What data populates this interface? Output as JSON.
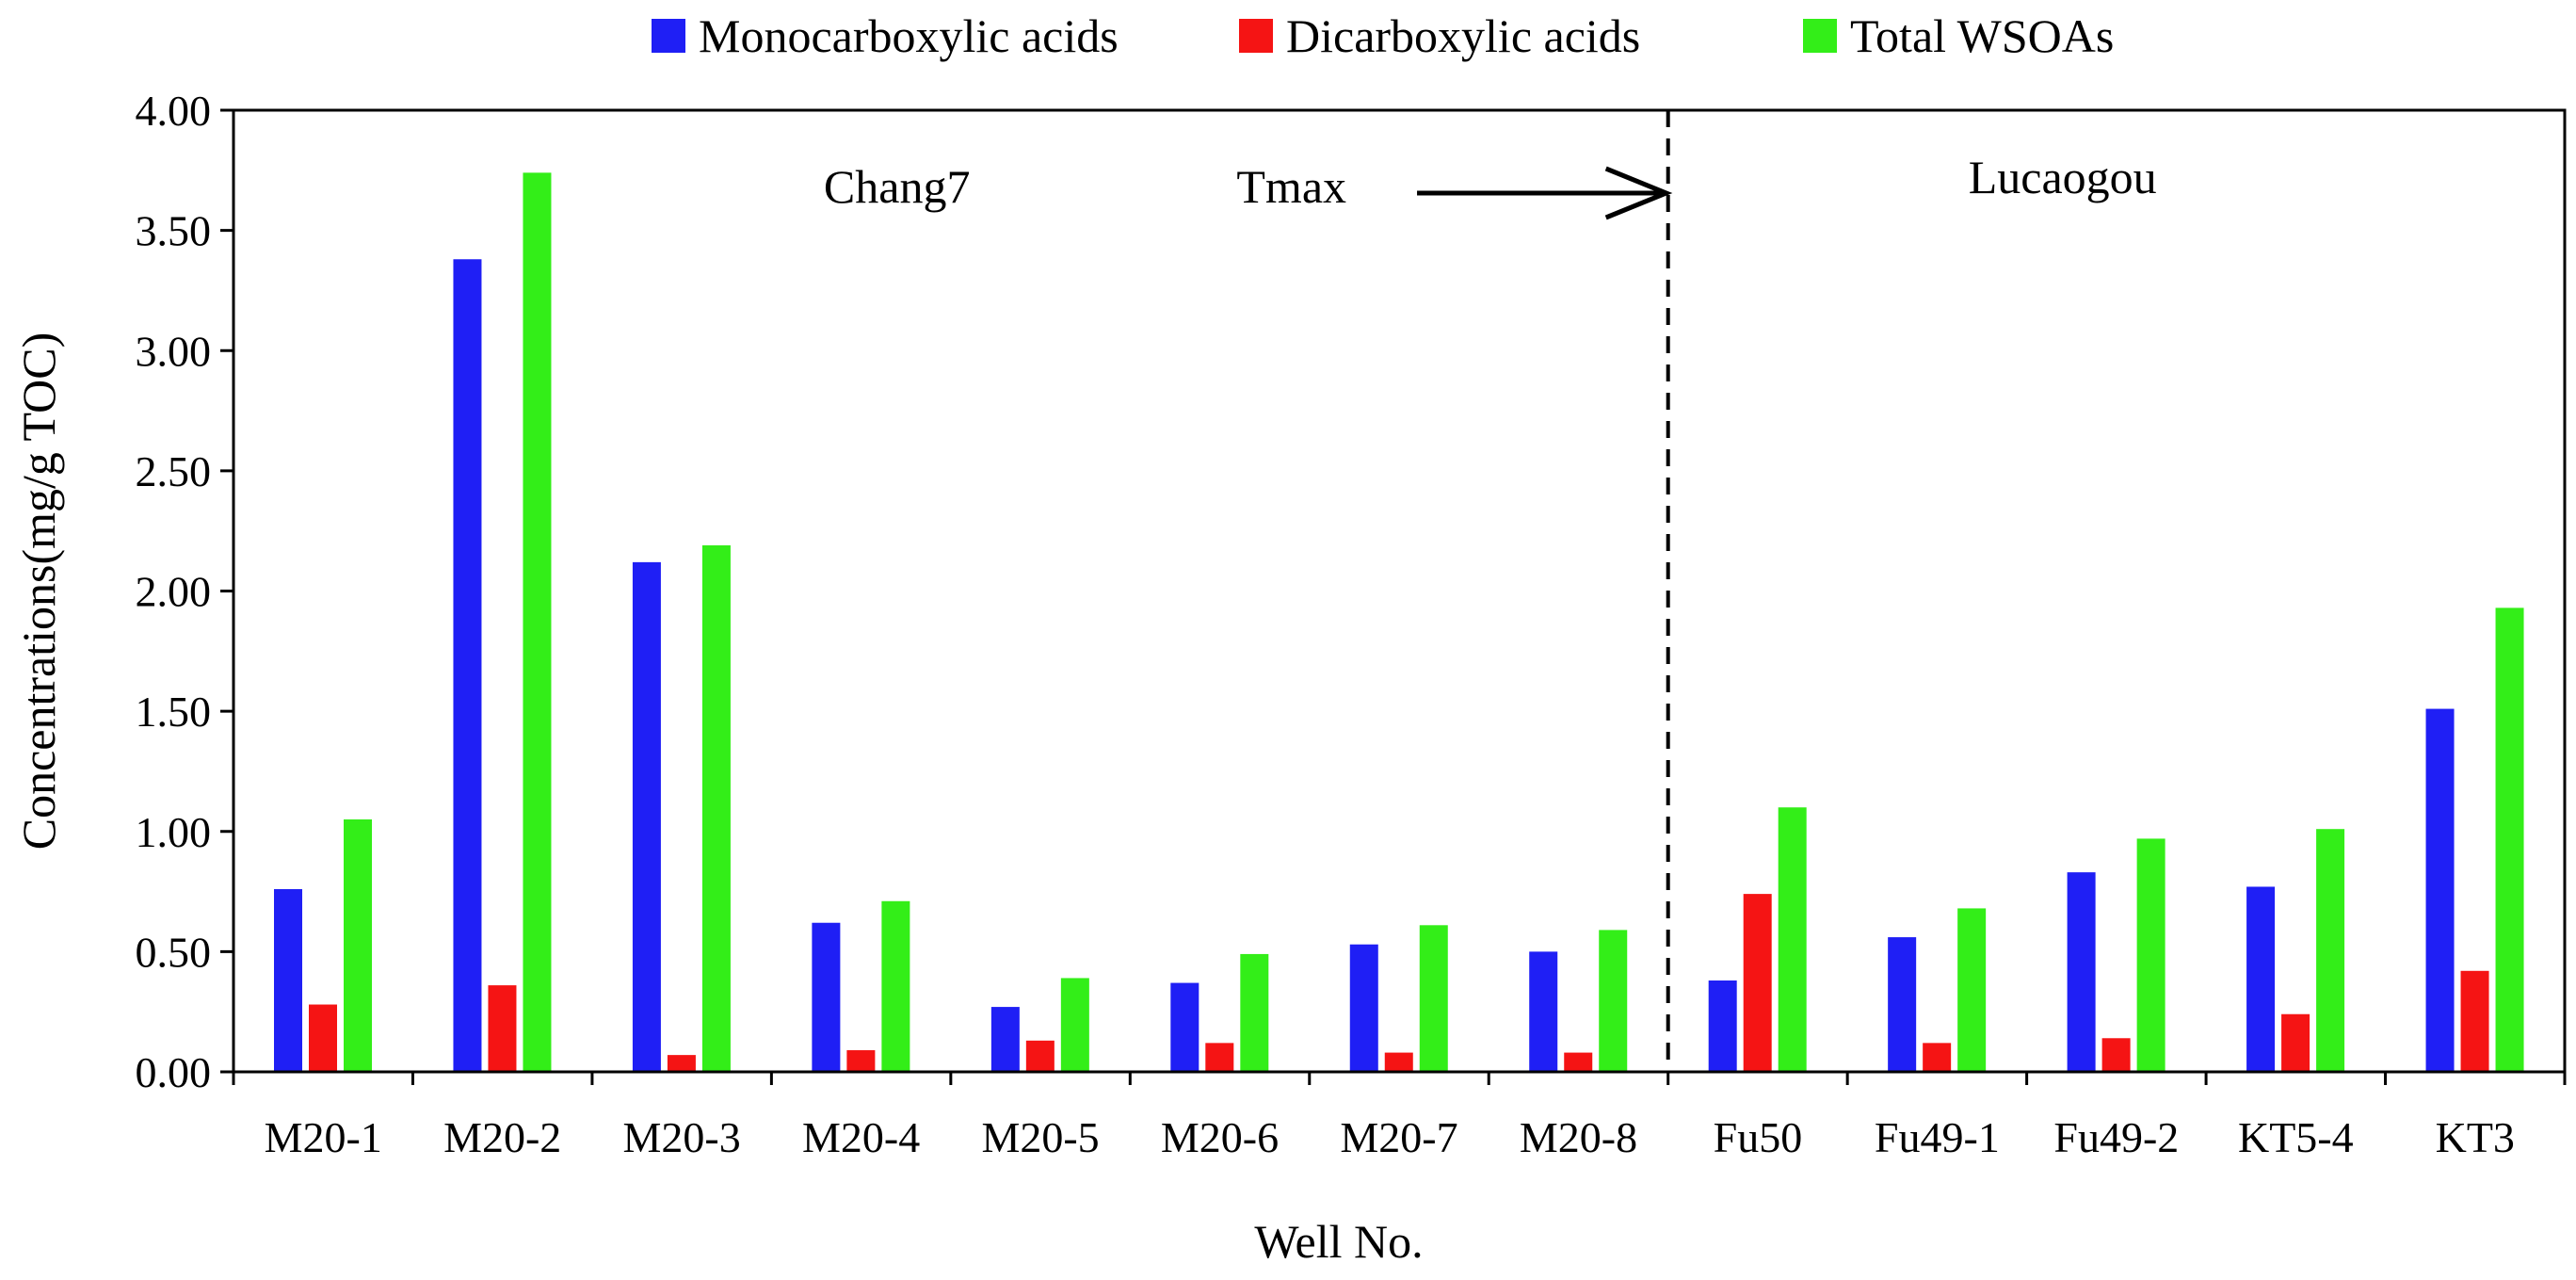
{
  "chart_data": {
    "type": "bar",
    "title": "",
    "xlabel": "Well No.",
    "ylabel": "Concentrations(mg/g TOC)",
    "ylim": [
      0,
      4
    ],
    "yticks": [
      "0.00",
      "0.50",
      "1.00",
      "1.50",
      "2.00",
      "2.50",
      "3.00",
      "3.50",
      "4.00"
    ],
    "ytick_values": [
      0,
      0.5,
      1,
      1.5,
      2,
      2.5,
      3,
      3.5,
      4
    ],
    "grid": false,
    "legend_position": "top-center",
    "categories": [
      "M20-1",
      "M20-2",
      "M20-3",
      "M20-4",
      "M20-5",
      "M20-6",
      "M20-7",
      "M20-8",
      "Fu50",
      "Fu49-1",
      "Fu49-2",
      "KT5-4",
      "KT3"
    ],
    "series": [
      {
        "name": "Monocarboxylic acids",
        "color": "#1f1ff5",
        "values": [
          0.76,
          3.38,
          2.12,
          0.62,
          0.27,
          0.37,
          0.53,
          0.5,
          0.38,
          0.56,
          0.83,
          0.77,
          1.51
        ]
      },
      {
        "name": "Dicarboxylic acids",
        "color": "#f51414",
        "values": [
          0.28,
          0.36,
          0.07,
          0.09,
          0.13,
          0.12,
          0.08,
          0.08,
          0.74,
          0.12,
          0.14,
          0.24,
          0.42
        ]
      },
      {
        "name": "Total WSOAs",
        "color": "#33ee18",
        "values": [
          1.05,
          3.74,
          2.19,
          0.71,
          0.39,
          0.49,
          0.61,
          0.59,
          1.1,
          0.68,
          0.97,
          1.01,
          1.93
        ]
      }
    ],
    "divider_after_category": "M20-8",
    "annotations": {
      "left_group": "Chang7",
      "right_group": "Lucaogou",
      "arrow_label": "Tmax"
    }
  }
}
